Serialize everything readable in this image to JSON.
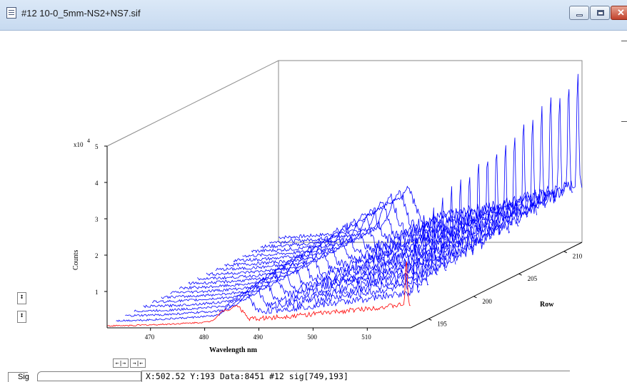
{
  "window": {
    "title": "#12  10-0_5mm-NS2+NS7.sif",
    "controls": [
      "minimize-icon",
      "maximize-icon",
      "close-icon"
    ]
  },
  "chart_data": {
    "type": "line",
    "style": "3D waterfall of spectra",
    "xlabel": "Wavelength nm",
    "ylabel": "Counts",
    "zlabel": "Row",
    "y_multiplier_label": "x10",
    "y_multiplier_exponent": "4",
    "x_ticks": [
      "470",
      "480",
      "490",
      "500",
      "510"
    ],
    "y_ticks": [
      "1",
      "2",
      "3",
      "4",
      "5"
    ],
    "z_ticks": [
      "195",
      "200",
      "205",
      "210"
    ],
    "xlim": [
      462,
      518
    ],
    "ylim": [
      0,
      5
    ],
    "zlim": [
      193,
      212
    ],
    "colors": {
      "highlight_series": "#ff0000",
      "series": "#0000ff",
      "axes": "#000000",
      "back_panel": "#888888"
    },
    "highlighted_row": 193,
    "rows": [
      193,
      194,
      195,
      196,
      197,
      198,
      199,
      200,
      201,
      202,
      203,
      204,
      205,
      206,
      207,
      208,
      209,
      210,
      211,
      212
    ],
    "peak_counts_by_row": [
      2.0,
      2.7,
      3.0,
      3.2,
      3.4,
      3.6,
      3.7,
      3.8,
      3.9,
      4.0,
      4.1,
      4.2,
      4.3,
      4.4,
      4.5,
      4.6,
      4.7,
      4.8,
      4.9,
      5.0
    ]
  },
  "toolbar": {
    "y_expand_icon": "↕",
    "y_contract_icon": "↕",
    "x_expand_label": "←|→",
    "x_contract_label": "→|←"
  },
  "status": {
    "label": "Sig",
    "readout": "X:502.52   Y:193 Data:8451     #12 sig[749,193]"
  }
}
